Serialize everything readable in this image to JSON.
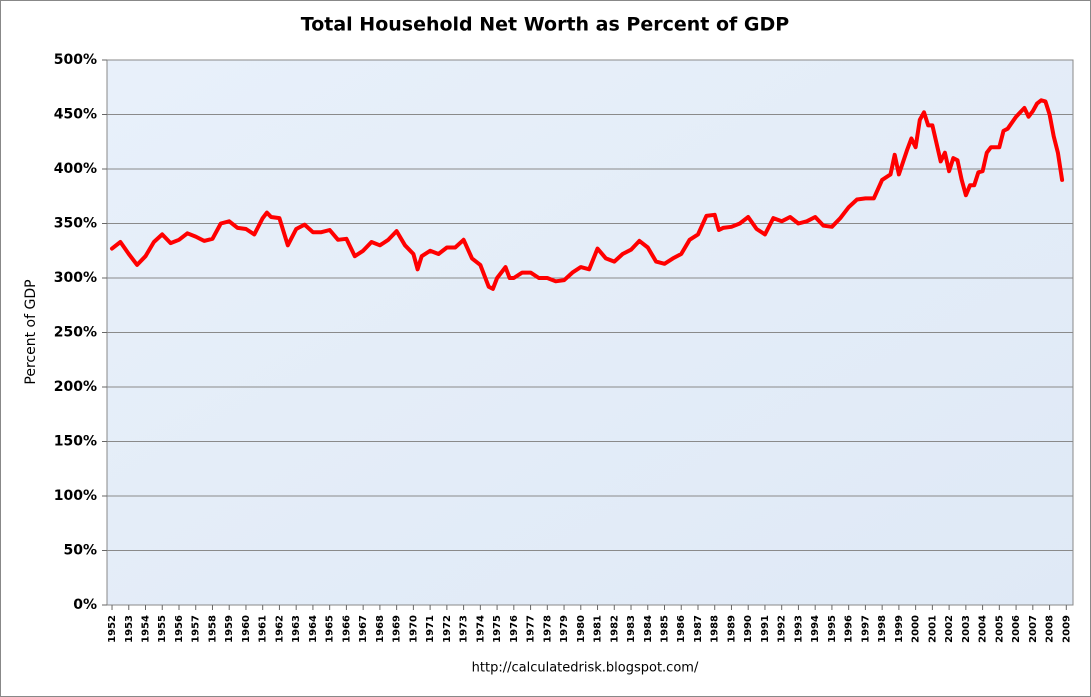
{
  "chart_data": {
    "type": "line",
    "title": "Total Household Net Worth as Percent of GDP",
    "ylabel": "Percent of GDP",
    "source": "http://calculatedrisk.blogspot.com/",
    "x": [
      1952.0,
      1952.5,
      1953.0,
      1953.5,
      1954.0,
      1954.5,
      1955.0,
      1955.5,
      1956.0,
      1956.5,
      1957.0,
      1957.5,
      1958.0,
      1958.5,
      1959.0,
      1959.5,
      1960.0,
      1960.5,
      1961.0,
      1961.25,
      1961.5,
      1962.0,
      1962.5,
      1963.0,
      1963.5,
      1964.0,
      1964.5,
      1965.0,
      1965.5,
      1966.0,
      1966.5,
      1967.0,
      1967.5,
      1968.0,
      1968.5,
      1969.0,
      1969.5,
      1970.0,
      1970.25,
      1970.5,
      1971.0,
      1971.5,
      1972.0,
      1972.5,
      1973.0,
      1973.5,
      1974.0,
      1974.5,
      1974.75,
      1975.0,
      1975.5,
      1975.75,
      1976.0,
      1976.5,
      1977.0,
      1977.5,
      1978.0,
      1978.5,
      1979.0,
      1979.5,
      1980.0,
      1980.5,
      1981.0,
      1981.5,
      1982.0,
      1982.5,
      1983.0,
      1983.5,
      1984.0,
      1984.5,
      1985.0,
      1985.5,
      1986.0,
      1986.5,
      1987.0,
      1987.5,
      1988.0,
      1988.25,
      1988.5,
      1989.0,
      1989.5,
      1990.0,
      1990.5,
      1991.0,
      1991.5,
      1992.0,
      1992.5,
      1993.0,
      1993.5,
      1994.0,
      1994.5,
      1995.0,
      1995.5,
      1996.0,
      1996.5,
      1997.0,
      1997.5,
      1998.0,
      1998.5,
      1998.75,
      1999.0,
      1999.5,
      1999.75,
      2000.0,
      2000.25,
      2000.5,
      2000.75,
      2001.0,
      2001.5,
      2001.75,
      2002.0,
      2002.25,
      2002.5,
      2002.75,
      2003.0,
      2003.25,
      2003.5,
      2003.75,
      2004.0,
      2004.25,
      2004.5,
      2005.0,
      2005.25,
      2005.5,
      2006.0,
      2006.25,
      2006.5,
      2006.75,
      2007.0,
      2007.25,
      2007.5,
      2007.75,
      2008.0,
      2008.25,
      2008.5,
      2008.75
    ],
    "series": [
      {
        "color": "#ff0000",
        "values": [
          327,
          333,
          322,
          312,
          320,
          333,
          340,
          332,
          335,
          341,
          338,
          334,
          336,
          350,
          352,
          346,
          345,
          340,
          355,
          360,
          356,
          355,
          330,
          345,
          349,
          342,
          342,
          344,
          335,
          336,
          320,
          325,
          333,
          330,
          335,
          343,
          330,
          322,
          308,
          320,
          325,
          322,
          328,
          328,
          335,
          318,
          312,
          292,
          290,
          300,
          310,
          300,
          300,
          305,
          305,
          300,
          300,
          297,
          298,
          305,
          310,
          308,
          327,
          318,
          315,
          322,
          326,
          334,
          328,
          315,
          313,
          318,
          322,
          335,
          340,
          357,
          358,
          344,
          346,
          347,
          350,
          356,
          345,
          340,
          355,
          352,
          356,
          350,
          352,
          356,
          348,
          347,
          355,
          365,
          372,
          373,
          373,
          390,
          395,
          413,
          395,
          418,
          428,
          420,
          445,
          452,
          440,
          440,
          407,
          415,
          398,
          410,
          408,
          390,
          376,
          385,
          385,
          397,
          398,
          415,
          420,
          420,
          435,
          437,
          448,
          452,
          456,
          448,
          453,
          460,
          463,
          462,
          450,
          430,
          415,
          390
        ]
      }
    ],
    "xlim": [
      1951.7,
      2009.4
    ],
    "xticks": [
      1952,
      1953,
      1954,
      1955,
      1956,
      1957,
      1958,
      1959,
      1960,
      1961,
      1962,
      1963,
      1964,
      1965,
      1966,
      1967,
      1968,
      1969,
      1970,
      1971,
      1972,
      1973,
      1974,
      1975,
      1976,
      1977,
      1978,
      1979,
      1980,
      1981,
      1982,
      1983,
      1984,
      1985,
      1986,
      1987,
      1988,
      1989,
      1990,
      1991,
      1992,
      1993,
      1994,
      1995,
      1996,
      1997,
      1998,
      1999,
      2000,
      2001,
      2002,
      2003,
      2004,
      2005,
      2006,
      2007,
      2008,
      2009
    ],
    "ylim": [
      0,
      500
    ],
    "yticks": [
      {
        "value": 0,
        "label": "0%"
      },
      {
        "value": 50,
        "label": "50%"
      },
      {
        "value": 100,
        "label": "100%"
      },
      {
        "value": 150,
        "label": "150%"
      },
      {
        "value": 200,
        "label": "200%"
      },
      {
        "value": 250,
        "label": "250%"
      },
      {
        "value": 300,
        "label": "300%"
      },
      {
        "value": 350,
        "label": "350%"
      },
      {
        "value": 400,
        "label": "400%"
      },
      {
        "value": 450,
        "label": "450%"
      },
      {
        "value": 500,
        "label": "500%"
      }
    ],
    "grid": true
  }
}
